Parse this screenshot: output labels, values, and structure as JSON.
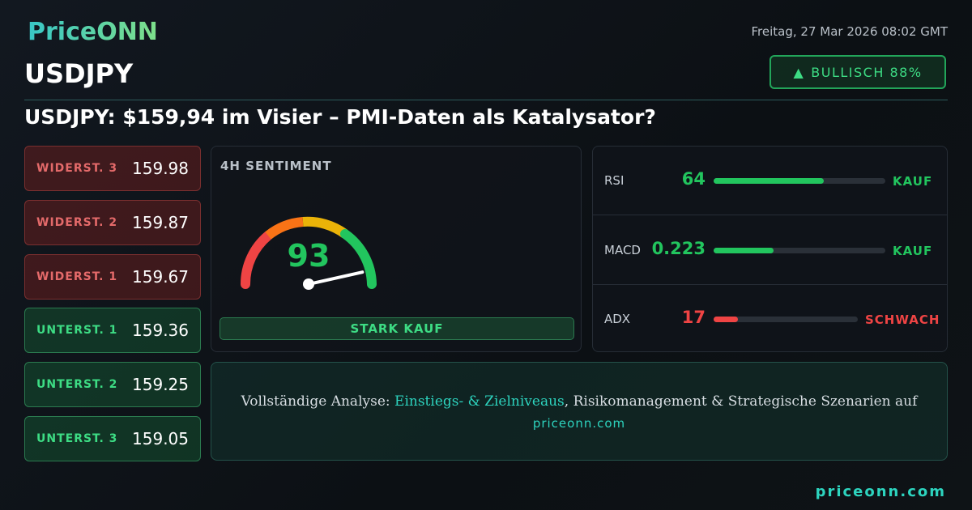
{
  "header": {
    "logo": "PriceONN",
    "date": "Freitag, 27 Mar 2026 08:02 GMT",
    "symbol": "USDJPY",
    "badge": "BULLISCH 88%"
  },
  "headline": "USDJPY: $159,94 im Visier – PMI-Daten als Katalysator?",
  "levels": [
    {
      "label": "WIDERST. 3",
      "value": 159.98,
      "kind": "resistance"
    },
    {
      "label": "WIDERST. 2",
      "value": 159.87,
      "kind": "resistance"
    },
    {
      "label": "WIDERST. 1",
      "value": 159.67,
      "kind": "resistance"
    },
    {
      "label": "UNTERST. 1",
      "value": 159.36,
      "kind": "support"
    },
    {
      "label": "UNTERST. 2",
      "value": 159.25,
      "kind": "support"
    },
    {
      "label": "UNTERST. 3",
      "value": 159.05,
      "kind": "support"
    }
  ],
  "sentiment": {
    "title": "4H SENTIMENT",
    "score": 93,
    "signal": "STARK KAUF"
  },
  "indicators": [
    {
      "name": "RSI",
      "value": 64,
      "signal": "KAUF",
      "color": "#22c55e"
    },
    {
      "name": "MACD",
      "value": 0.223,
      "signal": "KAUF",
      "color": "#22c55e"
    },
    {
      "name": "ADX",
      "value": 17,
      "signal": "SCHWACH",
      "color": "#ef4444"
    }
  ],
  "cta": {
    "before": "Vollständige Analyse: ",
    "highlight": "Einstiegs- & Zielniveaus",
    "after": ", Risikomanagement & Strategische Szenarien auf",
    "link": "priceonn.com"
  },
  "footer": "priceonn.com"
}
